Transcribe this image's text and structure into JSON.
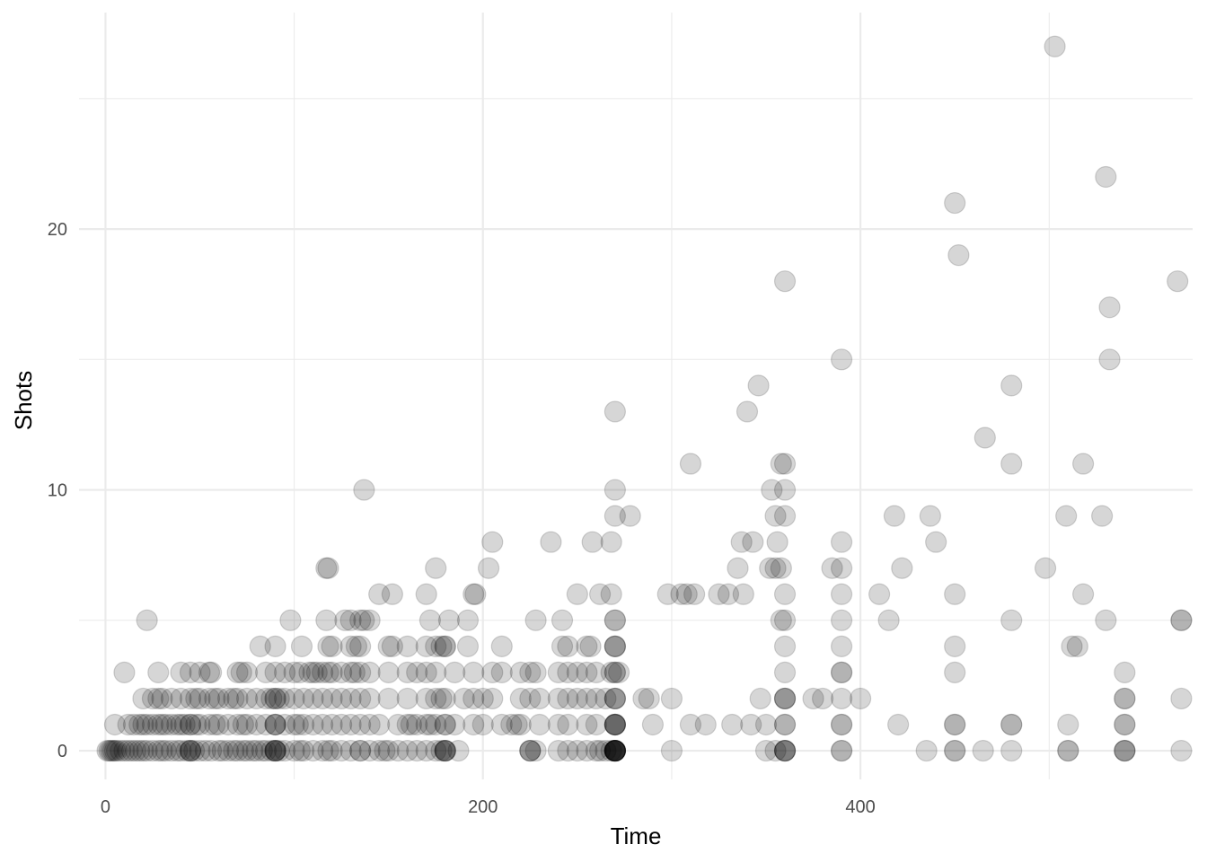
{
  "chart_data": {
    "type": "scatter",
    "xlabel": "Time",
    "ylabel": "Shots",
    "xlim": [
      -14,
      576
    ],
    "ylim": [
      -1.1,
      28.3
    ],
    "x_ticks": [
      0,
      200,
      400
    ],
    "x_minor": [
      100,
      300,
      500
    ],
    "y_ticks": [
      0,
      10,
      20
    ],
    "y_minor": [
      5,
      15,
      25
    ],
    "x_tick_labels": [
      "0",
      "200",
      "400"
    ],
    "y_tick_labels": [
      "0",
      "10",
      "20"
    ],
    "grid": true,
    "point_color": "#000000",
    "point_alpha": 0.16,
    "points": [
      [
        1,
        0
      ],
      [
        2,
        0
      ],
      [
        3,
        0
      ],
      [
        4,
        0
      ],
      [
        5,
        0
      ],
      [
        6,
        0
      ],
      [
        8,
        0
      ],
      [
        10,
        0
      ],
      [
        12,
        0
      ],
      [
        14,
        0
      ],
      [
        16,
        0
      ],
      [
        18,
        0
      ],
      [
        20,
        0
      ],
      [
        22,
        0
      ],
      [
        25,
        0
      ],
      [
        28,
        0
      ],
      [
        30,
        0
      ],
      [
        32,
        0
      ],
      [
        35,
        0
      ],
      [
        38,
        0
      ],
      [
        40,
        0
      ],
      [
        43,
        0
      ],
      [
        45,
        0
      ],
      [
        45,
        0
      ],
      [
        45,
        0
      ],
      [
        47,
        0
      ],
      [
        50,
        0
      ],
      [
        53,
        0
      ],
      [
        56,
        0
      ],
      [
        60,
        0
      ],
      [
        62,
        0
      ],
      [
        65,
        0
      ],
      [
        68,
        0
      ],
      [
        70,
        0
      ],
      [
        73,
        0
      ],
      [
        75,
        0
      ],
      [
        78,
        0
      ],
      [
        80,
        0
      ],
      [
        83,
        0
      ],
      [
        85,
        0
      ],
      [
        88,
        0
      ],
      [
        90,
        0
      ],
      [
        90,
        0
      ],
      [
        90,
        0
      ],
      [
        90,
        0
      ],
      [
        92,
        0
      ],
      [
        95,
        0
      ],
      [
        100,
        0
      ],
      [
        103,
        0
      ],
      [
        105,
        0
      ],
      [
        110,
        0
      ],
      [
        115,
        0
      ],
      [
        118,
        0
      ],
      [
        120,
        0
      ],
      [
        125,
        0
      ],
      [
        130,
        0
      ],
      [
        135,
        0
      ],
      [
        135,
        0
      ],
      [
        140,
        0
      ],
      [
        145,
        0
      ],
      [
        148,
        0
      ],
      [
        150,
        0
      ],
      [
        155,
        0
      ],
      [
        160,
        0
      ],
      [
        165,
        0
      ],
      [
        170,
        0
      ],
      [
        175,
        0
      ],
      [
        178,
        0
      ],
      [
        180,
        0
      ],
      [
        180,
        0
      ],
      [
        180,
        0
      ],
      [
        180,
        0
      ],
      [
        187,
        0
      ],
      [
        225,
        0
      ],
      [
        225,
        0
      ],
      [
        225,
        0
      ],
      [
        228,
        0
      ],
      [
        240,
        0
      ],
      [
        245,
        0
      ],
      [
        250,
        0
      ],
      [
        255,
        0
      ],
      [
        260,
        0
      ],
      [
        262,
        0
      ],
      [
        265,
        0
      ],
      [
        268,
        0
      ],
      [
        270,
        0
      ],
      [
        270,
        0
      ],
      [
        270,
        0
      ],
      [
        270,
        0
      ],
      [
        270,
        0
      ],
      [
        270,
        0
      ],
      [
        270,
        0
      ],
      [
        270,
        0
      ],
      [
        270,
        0
      ],
      [
        270,
        0
      ],
      [
        300,
        0
      ],
      [
        350,
        0
      ],
      [
        355,
        0
      ],
      [
        360,
        0
      ],
      [
        360,
        0
      ],
      [
        360,
        0
      ],
      [
        360,
        0
      ],
      [
        390,
        0
      ],
      [
        390,
        0
      ],
      [
        435,
        0
      ],
      [
        450,
        0
      ],
      [
        450,
        0
      ],
      [
        465,
        0
      ],
      [
        480,
        0
      ],
      [
        510,
        0
      ],
      [
        510,
        0
      ],
      [
        540,
        0
      ],
      [
        540,
        0
      ],
      [
        540,
        0
      ],
      [
        570,
        0
      ],
      [
        5,
        1
      ],
      [
        12,
        1
      ],
      [
        15,
        1
      ],
      [
        18,
        1
      ],
      [
        20,
        1
      ],
      [
        22,
        1
      ],
      [
        25,
        1
      ],
      [
        28,
        1
      ],
      [
        30,
        1
      ],
      [
        32,
        1
      ],
      [
        35,
        1
      ],
      [
        38,
        1
      ],
      [
        40,
        1
      ],
      [
        42,
        1
      ],
      [
        45,
        1
      ],
      [
        45,
        1
      ],
      [
        48,
        1
      ],
      [
        50,
        1
      ],
      [
        55,
        1
      ],
      [
        58,
        1
      ],
      [
        60,
        1
      ],
      [
        65,
        1
      ],
      [
        70,
        1
      ],
      [
        73,
        1
      ],
      [
        75,
        1
      ],
      [
        80,
        1
      ],
      [
        85,
        1
      ],
      [
        90,
        1
      ],
      [
        90,
        1
      ],
      [
        90,
        1
      ],
      [
        95,
        1
      ],
      [
        100,
        1
      ],
      [
        102,
        1
      ],
      [
        105,
        1
      ],
      [
        110,
        1
      ],
      [
        115,
        1
      ],
      [
        120,
        1
      ],
      [
        125,
        1
      ],
      [
        130,
        1
      ],
      [
        135,
        1
      ],
      [
        140,
        1
      ],
      [
        145,
        1
      ],
      [
        155,
        1
      ],
      [
        160,
        1
      ],
      [
        162,
        1
      ],
      [
        165,
        1
      ],
      [
        170,
        1
      ],
      [
        172,
        1
      ],
      [
        175,
        1
      ],
      [
        180,
        1
      ],
      [
        180,
        1
      ],
      [
        185,
        1
      ],
      [
        195,
        1
      ],
      [
        200,
        1
      ],
      [
        210,
        1
      ],
      [
        215,
        1
      ],
      [
        218,
        1
      ],
      [
        220,
        1
      ],
      [
        230,
        1
      ],
      [
        240,
        1
      ],
      [
        245,
        1
      ],
      [
        255,
        1
      ],
      [
        260,
        1
      ],
      [
        270,
        1
      ],
      [
        270,
        1
      ],
      [
        270,
        1
      ],
      [
        270,
        1
      ],
      [
        270,
        1
      ],
      [
        290,
        1
      ],
      [
        310,
        1
      ],
      [
        318,
        1
      ],
      [
        332,
        1
      ],
      [
        342,
        1
      ],
      [
        350,
        1
      ],
      [
        360,
        1
      ],
      [
        360,
        1
      ],
      [
        390,
        1
      ],
      [
        390,
        1
      ],
      [
        420,
        1
      ],
      [
        450,
        1
      ],
      [
        450,
        1
      ],
      [
        480,
        1
      ],
      [
        480,
        1
      ],
      [
        510,
        1
      ],
      [
        540,
        1
      ],
      [
        540,
        1
      ],
      [
        20,
        2
      ],
      [
        25,
        2
      ],
      [
        28,
        2
      ],
      [
        30,
        2
      ],
      [
        35,
        2
      ],
      [
        40,
        2
      ],
      [
        45,
        2
      ],
      [
        48,
        2
      ],
      [
        50,
        2
      ],
      [
        55,
        2
      ],
      [
        58,
        2
      ],
      [
        60,
        2
      ],
      [
        65,
        2
      ],
      [
        68,
        2
      ],
      [
        70,
        2
      ],
      [
        75,
        2
      ],
      [
        80,
        2
      ],
      [
        85,
        2
      ],
      [
        88,
        2
      ],
      [
        90,
        2
      ],
      [
        90,
        2
      ],
      [
        92,
        2
      ],
      [
        95,
        2
      ],
      [
        100,
        2
      ],
      [
        105,
        2
      ],
      [
        110,
        2
      ],
      [
        115,
        2
      ],
      [
        120,
        2
      ],
      [
        125,
        2
      ],
      [
        130,
        2
      ],
      [
        135,
        2
      ],
      [
        140,
        2
      ],
      [
        150,
        2
      ],
      [
        160,
        2
      ],
      [
        170,
        2
      ],
      [
        175,
        2
      ],
      [
        178,
        2
      ],
      [
        180,
        2
      ],
      [
        190,
        2
      ],
      [
        195,
        2
      ],
      [
        200,
        2
      ],
      [
        205,
        2
      ],
      [
        220,
        2
      ],
      [
        225,
        2
      ],
      [
        230,
        2
      ],
      [
        240,
        2
      ],
      [
        245,
        2
      ],
      [
        250,
        2
      ],
      [
        255,
        2
      ],
      [
        260,
        2
      ],
      [
        265,
        2
      ],
      [
        270,
        2
      ],
      [
        270,
        2
      ],
      [
        270,
        2
      ],
      [
        285,
        2
      ],
      [
        288,
        2
      ],
      [
        300,
        2
      ],
      [
        347,
        2
      ],
      [
        360,
        2
      ],
      [
        360,
        2
      ],
      [
        360,
        2
      ],
      [
        375,
        2
      ],
      [
        380,
        2
      ],
      [
        390,
        2
      ],
      [
        400,
        2
      ],
      [
        540,
        2
      ],
      [
        540,
        2
      ],
      [
        570,
        2
      ],
      [
        10,
        3
      ],
      [
        28,
        3
      ],
      [
        40,
        3
      ],
      [
        45,
        3
      ],
      [
        50,
        3
      ],
      [
        55,
        3
      ],
      [
        56,
        3
      ],
      [
        70,
        3
      ],
      [
        72,
        3
      ],
      [
        75,
        3
      ],
      [
        85,
        3
      ],
      [
        90,
        3
      ],
      [
        95,
        3
      ],
      [
        100,
        3
      ],
      [
        103,
        3
      ],
      [
        108,
        3
      ],
      [
        110,
        3
      ],
      [
        112,
        3
      ],
      [
        115,
        3
      ],
      [
        118,
        3
      ],
      [
        120,
        3
      ],
      [
        125,
        3
      ],
      [
        130,
        3
      ],
      [
        132,
        3
      ],
      [
        135,
        3
      ],
      [
        140,
        3
      ],
      [
        150,
        3
      ],
      [
        160,
        3
      ],
      [
        165,
        3
      ],
      [
        170,
        3
      ],
      [
        175,
        3
      ],
      [
        185,
        3
      ],
      [
        195,
        3
      ],
      [
        205,
        3
      ],
      [
        210,
        3
      ],
      [
        220,
        3
      ],
      [
        225,
        3
      ],
      [
        228,
        3
      ],
      [
        240,
        3
      ],
      [
        245,
        3
      ],
      [
        250,
        3
      ],
      [
        255,
        3
      ],
      [
        260,
        3
      ],
      [
        268,
        3
      ],
      [
        270,
        3
      ],
      [
        270,
        3
      ],
      [
        272,
        3
      ],
      [
        360,
        3
      ],
      [
        390,
        3
      ],
      [
        390,
        3
      ],
      [
        450,
        3
      ],
      [
        540,
        3
      ],
      [
        82,
        4
      ],
      [
        90,
        4
      ],
      [
        104,
        4
      ],
      [
        118,
        4
      ],
      [
        120,
        4
      ],
      [
        130,
        4
      ],
      [
        133,
        4
      ],
      [
        135,
        4
      ],
      [
        150,
        4
      ],
      [
        152,
        4
      ],
      [
        160,
        4
      ],
      [
        170,
        4
      ],
      [
        175,
        4
      ],
      [
        178,
        4
      ],
      [
        180,
        4
      ],
      [
        180,
        4
      ],
      [
        192,
        4
      ],
      [
        210,
        4
      ],
      [
        242,
        4
      ],
      [
        245,
        4
      ],
      [
        255,
        4
      ],
      [
        257,
        4
      ],
      [
        270,
        4
      ],
      [
        270,
        4
      ],
      [
        270,
        4
      ],
      [
        360,
        4
      ],
      [
        390,
        4
      ],
      [
        450,
        4
      ],
      [
        512,
        4
      ],
      [
        515,
        4
      ],
      [
        22,
        5
      ],
      [
        98,
        5
      ],
      [
        117,
        5
      ],
      [
        127,
        5
      ],
      [
        130,
        5
      ],
      [
        135,
        5
      ],
      [
        137,
        5
      ],
      [
        140,
        5
      ],
      [
        172,
        5
      ],
      [
        182,
        5
      ],
      [
        192,
        5
      ],
      [
        228,
        5
      ],
      [
        242,
        5
      ],
      [
        270,
        5
      ],
      [
        270,
        5
      ],
      [
        358,
        5
      ],
      [
        360,
        5
      ],
      [
        390,
        5
      ],
      [
        415,
        5
      ],
      [
        480,
        5
      ],
      [
        530,
        5
      ],
      [
        570,
        5
      ],
      [
        570,
        5
      ],
      [
        145,
        6
      ],
      [
        152,
        6
      ],
      [
        170,
        6
      ],
      [
        195,
        6
      ],
      [
        196,
        6
      ],
      [
        250,
        6
      ],
      [
        262,
        6
      ],
      [
        268,
        6
      ],
      [
        298,
        6
      ],
      [
        305,
        6
      ],
      [
        308,
        6
      ],
      [
        312,
        6
      ],
      [
        325,
        6
      ],
      [
        330,
        6
      ],
      [
        338,
        6
      ],
      [
        360,
        6
      ],
      [
        390,
        6
      ],
      [
        410,
        6
      ],
      [
        450,
        6
      ],
      [
        518,
        6
      ],
      [
        117,
        7
      ],
      [
        118,
        7
      ],
      [
        175,
        7
      ],
      [
        203,
        7
      ],
      [
        335,
        7
      ],
      [
        352,
        7
      ],
      [
        355,
        7
      ],
      [
        358,
        7
      ],
      [
        385,
        7
      ],
      [
        390,
        7
      ],
      [
        422,
        7
      ],
      [
        498,
        7
      ],
      [
        205,
        8
      ],
      [
        236,
        8
      ],
      [
        258,
        8
      ],
      [
        268,
        8
      ],
      [
        337,
        8
      ],
      [
        343,
        8
      ],
      [
        356,
        8
      ],
      [
        390,
        8
      ],
      [
        440,
        8
      ],
      [
        270,
        9
      ],
      [
        278,
        9
      ],
      [
        355,
        9
      ],
      [
        360,
        9
      ],
      [
        418,
        9
      ],
      [
        437,
        9
      ],
      [
        509,
        9
      ],
      [
        528,
        9
      ],
      [
        137,
        10
      ],
      [
        270,
        10
      ],
      [
        353,
        10
      ],
      [
        360,
        10
      ],
      [
        310,
        11
      ],
      [
        358,
        11
      ],
      [
        360,
        11
      ],
      [
        480,
        11
      ],
      [
        518,
        11
      ],
      [
        466,
        12
      ],
      [
        270,
        13
      ],
      [
        340,
        13
      ],
      [
        346,
        14
      ],
      [
        480,
        14
      ],
      [
        390,
        15
      ],
      [
        532,
        15
      ],
      [
        532,
        17
      ],
      [
        360,
        18
      ],
      [
        568,
        18
      ],
      [
        452,
        19
      ],
      [
        450,
        21
      ],
      [
        530,
        22
      ],
      [
        503,
        27
      ]
    ]
  }
}
